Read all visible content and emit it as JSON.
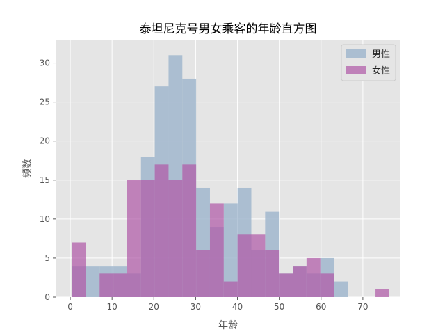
{
  "chart_data": {
    "type": "histogram",
    "title": "泰坦尼克号男女乘客的年龄直方图",
    "xlabel": "年龄",
    "ylabel": "频数",
    "xlim": [
      -3.5,
      79
    ],
    "ylim": [
      0,
      32.9
    ],
    "xticks": [
      0,
      10,
      20,
      30,
      40,
      50,
      60,
      70
    ],
    "yticks": [
      0,
      5,
      10,
      15,
      20,
      25,
      30
    ],
    "grid": true,
    "legend_position": "top-right",
    "series": [
      {
        "name": "男性",
        "color": "#9db5cc",
        "alpha": 0.82,
        "bins": [
          {
            "x0": 0.42,
            "x1": 3.72,
            "count": 4
          },
          {
            "x0": 3.72,
            "x1": 7.02,
            "count": 4
          },
          {
            "x0": 7.02,
            "x1": 10.32,
            "count": 4
          },
          {
            "x0": 10.32,
            "x1": 13.62,
            "count": 4
          },
          {
            "x0": 13.62,
            "x1": 16.92,
            "count": 3
          },
          {
            "x0": 16.92,
            "x1": 20.22,
            "count": 18
          },
          {
            "x0": 20.22,
            "x1": 23.52,
            "count": 27
          },
          {
            "x0": 23.52,
            "x1": 26.82,
            "count": 31
          },
          {
            "x0": 26.82,
            "x1": 30.12,
            "count": 28
          },
          {
            "x0": 30.12,
            "x1": 33.42,
            "count": 14
          },
          {
            "x0": 33.42,
            "x1": 36.72,
            "count": 9
          },
          {
            "x0": 36.72,
            "x1": 40.02,
            "count": 12
          },
          {
            "x0": 40.02,
            "x1": 43.32,
            "count": 14
          },
          {
            "x0": 43.32,
            "x1": 46.62,
            "count": 6
          },
          {
            "x0": 46.62,
            "x1": 49.92,
            "count": 11
          },
          {
            "x0": 49.92,
            "x1": 53.22,
            "count": 3
          },
          {
            "x0": 53.22,
            "x1": 56.52,
            "count": 4
          },
          {
            "x0": 56.52,
            "x1": 59.82,
            "count": 3
          },
          {
            "x0": 59.82,
            "x1": 63.12,
            "count": 5
          },
          {
            "x0": 63.12,
            "x1": 66.42,
            "count": 2
          },
          {
            "x0": 66.42,
            "x1": 69.72,
            "count": 0
          },
          {
            "x0": 69.72,
            "x1": 73.02,
            "count": 0
          },
          {
            "x0": 73.02,
            "x1": 76.32,
            "count": 0
          }
        ]
      },
      {
        "name": "女性",
        "color": "#b05aa7",
        "alpha": 0.72,
        "bins": [
          {
            "x0": 0.42,
            "x1": 3.72,
            "count": 7
          },
          {
            "x0": 3.72,
            "x1": 7.02,
            "count": 0
          },
          {
            "x0": 7.02,
            "x1": 10.32,
            "count": 3
          },
          {
            "x0": 10.32,
            "x1": 13.62,
            "count": 3
          },
          {
            "x0": 13.62,
            "x1": 16.92,
            "count": 15
          },
          {
            "x0": 16.92,
            "x1": 20.22,
            "count": 15
          },
          {
            "x0": 20.22,
            "x1": 23.52,
            "count": 17
          },
          {
            "x0": 23.52,
            "x1": 26.82,
            "count": 15
          },
          {
            "x0": 26.82,
            "x1": 30.12,
            "count": 17
          },
          {
            "x0": 30.12,
            "x1": 33.42,
            "count": 6
          },
          {
            "x0": 33.42,
            "x1": 36.72,
            "count": 12
          },
          {
            "x0": 36.72,
            "x1": 40.02,
            "count": 2
          },
          {
            "x0": 40.02,
            "x1": 43.32,
            "count": 8
          },
          {
            "x0": 43.32,
            "x1": 46.62,
            "count": 8
          },
          {
            "x0": 46.62,
            "x1": 49.92,
            "count": 6
          },
          {
            "x0": 49.92,
            "x1": 53.22,
            "count": 3
          },
          {
            "x0": 53.22,
            "x1": 56.52,
            "count": 4
          },
          {
            "x0": 56.52,
            "x1": 59.82,
            "count": 5
          },
          {
            "x0": 59.82,
            "x1": 63.12,
            "count": 3
          },
          {
            "x0": 63.12,
            "x1": 66.42,
            "count": 0
          },
          {
            "x0": 66.42,
            "x1": 69.72,
            "count": 0
          },
          {
            "x0": 69.72,
            "x1": 73.02,
            "count": 0
          },
          {
            "x0": 73.02,
            "x1": 76.32,
            "count": 1
          }
        ]
      }
    ]
  }
}
